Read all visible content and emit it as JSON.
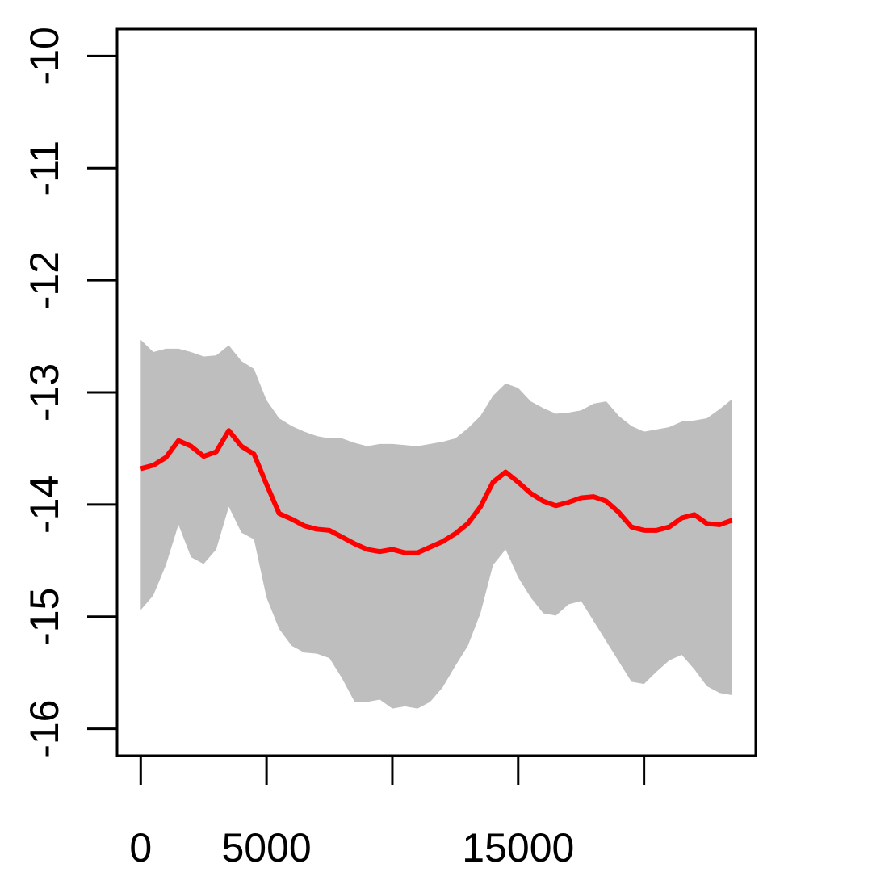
{
  "chart_data": {
    "type": "line",
    "x": [
      0,
      500,
      1000,
      1500,
      2000,
      2500,
      3000,
      3500,
      4000,
      4500,
      5000,
      5500,
      6000,
      6500,
      7000,
      7500,
      8000,
      8500,
      9000,
      9500,
      10000,
      10500,
      11000,
      11500,
      12000,
      12500,
      13000,
      13500,
      14000,
      14500,
      15000,
      15500,
      16000,
      16500,
      17000,
      17500,
      18000,
      18500,
      19000,
      19500,
      20000,
      20500,
      21000,
      21500,
      22000,
      22500,
      23000,
      23500
    ],
    "values": [
      -13.68,
      -13.65,
      -13.58,
      -13.43,
      -13.48,
      -13.57,
      -13.53,
      -13.34,
      -13.48,
      -13.55,
      -13.82,
      -14.08,
      -14.13,
      -14.19,
      -14.22,
      -14.23,
      -14.29,
      -14.35,
      -14.4,
      -14.42,
      -14.4,
      -14.43,
      -14.43,
      -14.38,
      -14.33,
      -14.26,
      -14.17,
      -14.02,
      -13.8,
      -13.71,
      -13.8,
      -13.9,
      -13.97,
      -14.01,
      -13.98,
      -13.94,
      -13.93,
      -13.97,
      -14.07,
      -14.2,
      -14.23,
      -14.23,
      -14.2,
      -14.12,
      -14.09,
      -14.17,
      -14.18,
      -14.14
    ],
    "upper": [
      -12.53,
      -12.64,
      -12.61,
      -12.61,
      -12.64,
      -12.68,
      -12.67,
      -12.58,
      -12.72,
      -12.79,
      -13.07,
      -13.23,
      -13.3,
      -13.35,
      -13.39,
      -13.41,
      -13.41,
      -13.45,
      -13.48,
      -13.46,
      -13.46,
      -13.47,
      -13.48,
      -13.46,
      -13.44,
      -13.41,
      -13.32,
      -13.21,
      -13.03,
      -12.92,
      -12.96,
      -13.08,
      -13.14,
      -13.19,
      -13.18,
      -13.16,
      -13.1,
      -13.08,
      -13.21,
      -13.3,
      -13.35,
      -13.33,
      -13.31,
      -13.26,
      -13.25,
      -13.23,
      -13.15,
      -13.06
    ],
    "lower": [
      -14.94,
      -14.81,
      -14.54,
      -14.18,
      -14.47,
      -14.53,
      -14.4,
      -14.02,
      -14.25,
      -14.31,
      -14.83,
      -15.11,
      -15.26,
      -15.32,
      -15.33,
      -15.37,
      -15.55,
      -15.76,
      -15.76,
      -15.74,
      -15.82,
      -15.8,
      -15.82,
      -15.76,
      -15.63,
      -15.44,
      -15.26,
      -14.97,
      -14.54,
      -14.4,
      -14.65,
      -14.83,
      -14.97,
      -14.99,
      -14.89,
      -14.86,
      -15.04,
      -15.22,
      -15.4,
      -15.58,
      -15.6,
      -15.49,
      -15.39,
      -15.34,
      -15.47,
      -15.62,
      -15.68,
      -15.7
    ],
    "color": "#ff0000",
    "band_color": "#bebebe",
    "xlim": [
      -940,
      24440
    ],
    "ylim": [
      -16.24,
      -9.76
    ],
    "xticks": [
      0,
      5000,
      {
        "value": 10000,
        "label": null
      },
      15000,
      {
        "value": 20000,
        "label": null
      }
    ],
    "yticks": [
      -16,
      -15,
      -14,
      -13,
      -12,
      -11,
      -10
    ]
  }
}
